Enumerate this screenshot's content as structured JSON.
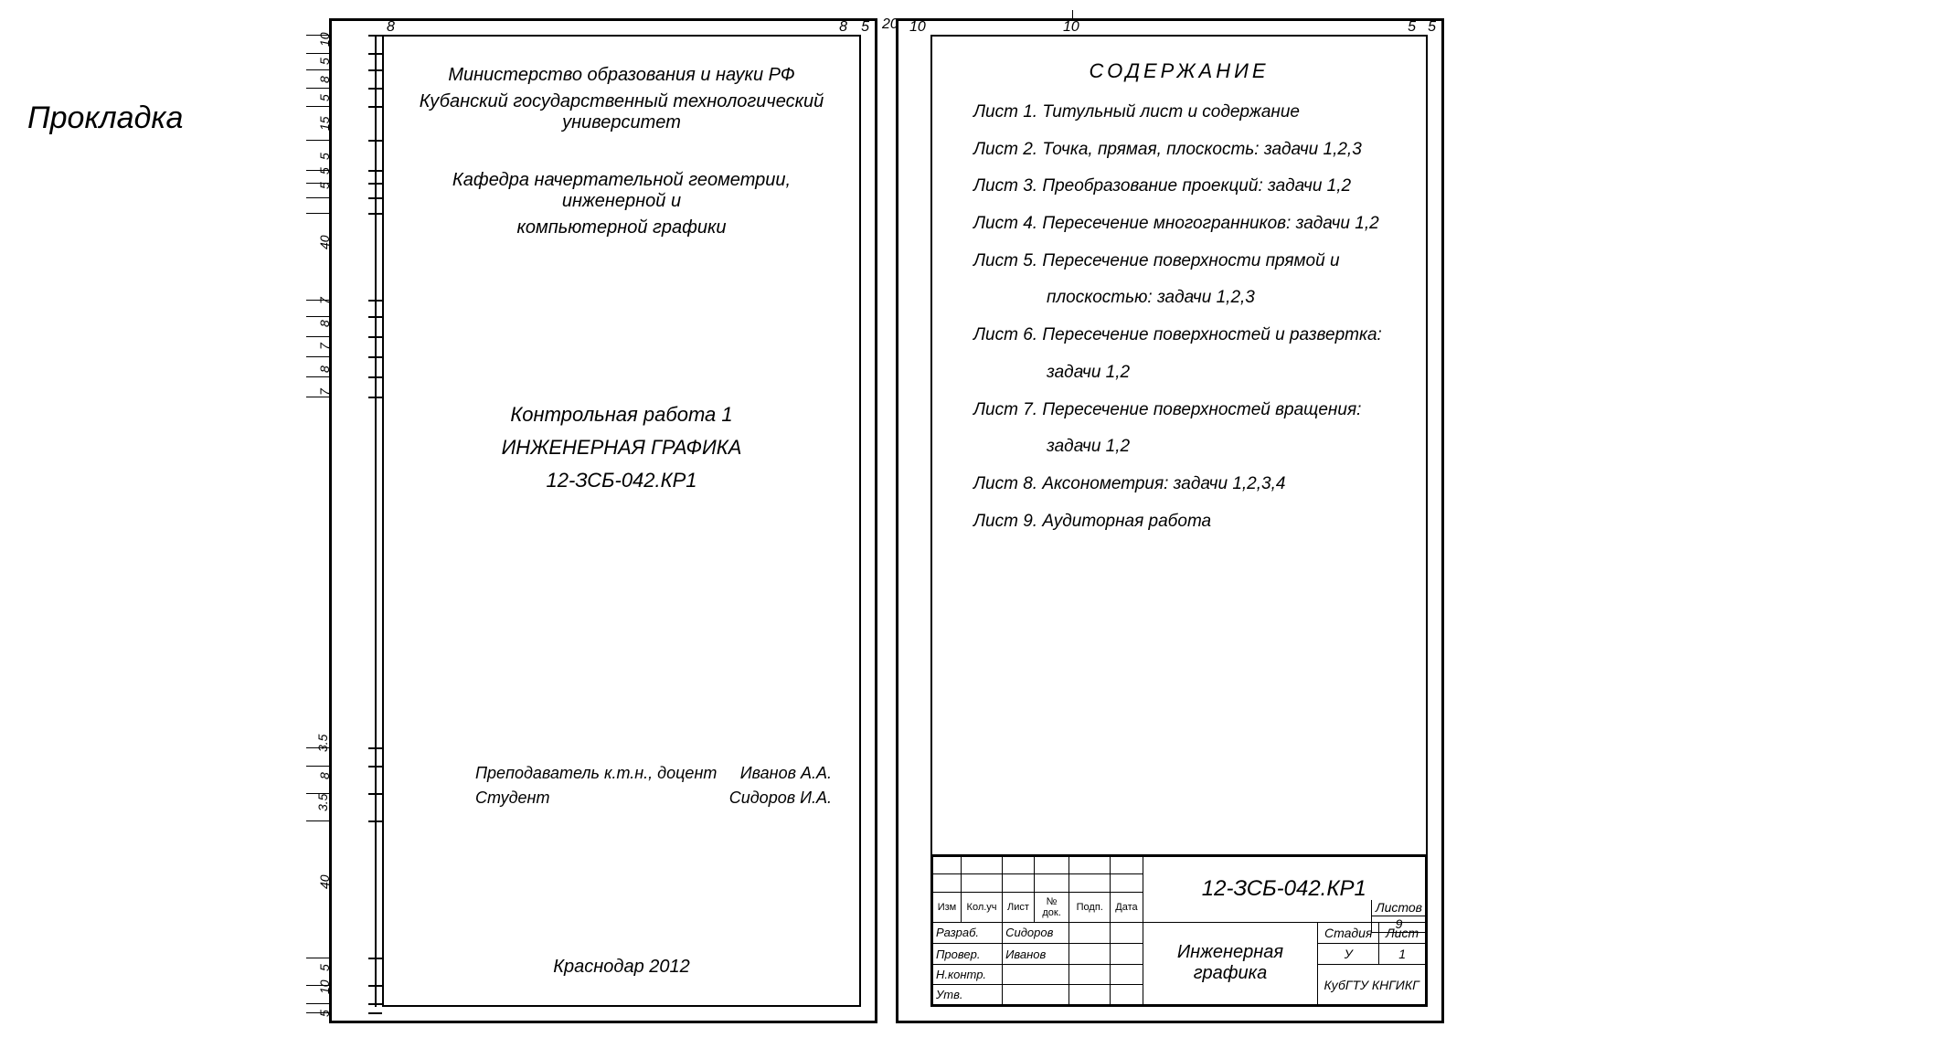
{
  "label": "Прокладка",
  "dims_top_left": {
    "a": "8",
    "b": "8",
    "c": "5"
  },
  "dims_gap": "20",
  "dims_top_right": {
    "a": "10",
    "b": "10",
    "c": "5",
    "d": "5"
  },
  "dims_side": [
    "10",
    "5",
    "8",
    "5",
    "15",
    "5",
    "5",
    "5",
    "40",
    "7",
    "8",
    "7",
    "8",
    "7",
    "3.5",
    "8",
    "3.5",
    "40",
    "5",
    "10",
    "5"
  ],
  "title": {
    "ministry": "Министерство образования и науки РФ",
    "university": "Кубанский государственный технологический университет",
    "dept1": "Кафедра начертательной геометрии, инженерной и",
    "dept2": "компьютерной графики",
    "work": "Контрольная работа 1",
    "subject": "ИНЖЕНЕРНАЯ ГРАФИКА",
    "code": "12-ЗСБ-042.КР1",
    "teacher_label": "Преподаватель к.т.н., доцент",
    "teacher_name": "Иванов А.А.",
    "student_label": "Студент",
    "student_name": "Сидоров И.А.",
    "footer": "Краснодар 2012"
  },
  "toc": {
    "heading": "СОДЕРЖАНИЕ",
    "items": [
      "Лист 1. Титульный лист и содержание",
      "Лист 2. Точка, прямая, плоскость: задачи 1,2,3",
      "Лист 3. Преобразование проекций: задачи 1,2",
      "Лист 4. Пересечение многогранников: задачи 1,2",
      "Лист 5. Пересечение поверхности прямой и",
      "плоскостью: задачи 1,2,3",
      "Лист 6. Пересечение поверхностей и развертка:",
      "задачи 1,2",
      "Лист 7. Пересечение поверхностей вращения:",
      "задачи 1,2",
      "Лист 8. Аксонометрия: задачи 1,2,3,4",
      "Лист 9. Аудиторная работа"
    ],
    "indent_indices": [
      5,
      7,
      9
    ]
  },
  "stamp": {
    "cols": [
      "Изм",
      "Кол.уч",
      "Лист",
      "№ док.",
      "Подп.",
      "Дата"
    ],
    "rows": [
      {
        "role": "Разраб.",
        "name": "Сидоров"
      },
      {
        "role": "Провер.",
        "name": "Иванов"
      },
      {
        "role": "Н.контр.",
        "name": ""
      },
      {
        "role": "Утв.",
        "name": ""
      }
    ],
    "code": "12-ЗСБ-042.КР1",
    "project1": "Инженерная",
    "project2": "графика",
    "stage_h": "Стадия",
    "sheet_h": "Лист",
    "sheets_h": "Листов",
    "stage": "У",
    "sheet": "1",
    "sheets": "9",
    "org": "КубГТУ КНГИКГ"
  },
  "colors": {
    "fg": "#000000",
    "bg": "#ffffff"
  }
}
